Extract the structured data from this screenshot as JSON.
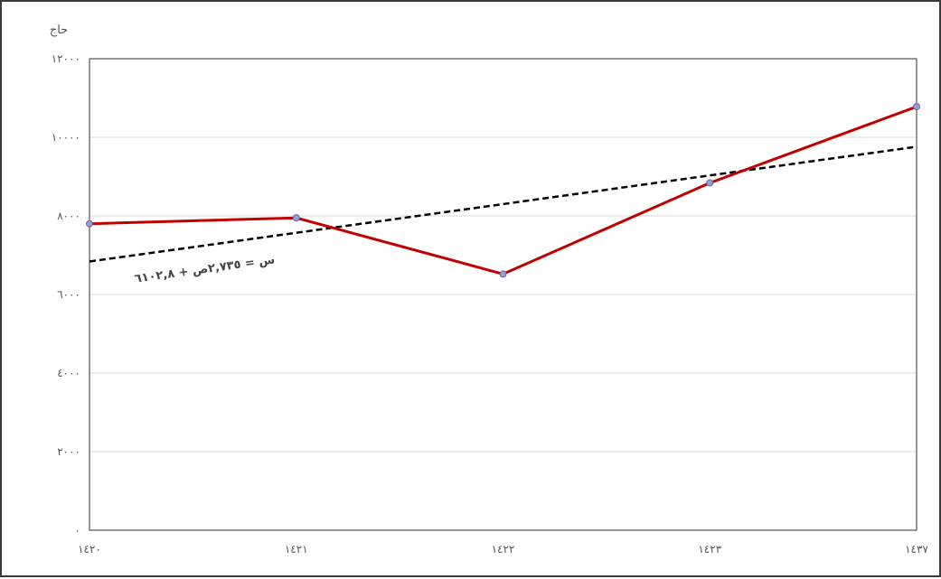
{
  "chart_data": {
    "type": "line",
    "title": "",
    "ylabel": "حاج",
    "xlabel": "",
    "categories": [
      "١٤٢٠",
      "١٤٢١",
      "١٤٢٢",
      "١٤٢٣",
      "١٤٣٧"
    ],
    "series": [
      {
        "values": [
          7800,
          7950,
          6520,
          8840,
          10780
        ],
        "color": "#c00000",
        "marker_color": "#8ea4d8"
      }
    ],
    "trendline": {
      "label": "س = ٢,٧٣٥ص + ٦١٠٢,٨",
      "start": 6840,
      "end": 9760,
      "color": "#000000"
    },
    "yticks": [
      {
        "value": 0,
        "label": "٠"
      },
      {
        "value": 2000,
        "label": "٢٠٠٠"
      },
      {
        "value": 4000,
        "label": "٤٠٠٠"
      },
      {
        "value": 6000,
        "label": "٦٠٠٠"
      },
      {
        "value": 8000,
        "label": "٨٠٠٠"
      },
      {
        "value": 10000,
        "label": "١٠٠٠٠"
      },
      {
        "value": 12000,
        "label": "١٢٠٠٠"
      }
    ],
    "ylim": [
      0,
      12000
    ],
    "grid": true,
    "legend": false
  }
}
